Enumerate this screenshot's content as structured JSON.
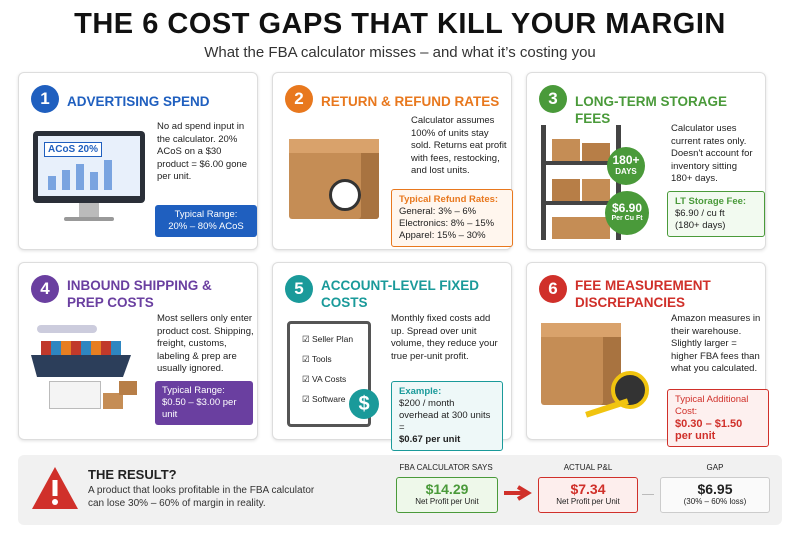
{
  "header": {
    "title": "THE 6 COST GAPS THAT KILL YOUR MARGIN",
    "subtitle": "What the FBA calculator misses – and what it’s costing you"
  },
  "cards": [
    {
      "number": "1",
      "title": "ADVERTISING SPEND",
      "body": "No ad spend input in the calculator. 20% ACoS on a $30 product = $6.00 gone per unit.",
      "illustration": [
        "ACoS 20%"
      ],
      "box": {
        "title": "Typical Range:",
        "lines": [
          "20% – 80% ACoS"
        ]
      }
    },
    {
      "number": "2",
      "title": "RETURN & REFUND RATES",
      "body": "Calculator assumes 100% of units stay sold. Returns eat profit with fees, restocking, and lost units.",
      "box": {
        "title": "Typical Refund Rates:",
        "lines": [
          "General: 3% – 6%",
          "Electronics: 8% – 15%",
          "Apparel: 15% – 30%"
        ]
      }
    },
    {
      "number": "3",
      "title": "LONG-TERM STORAGE FEES",
      "body": "Calculator uses current rates only. Doesn't account for inventory sitting 180+ days.",
      "illustration": [
        "180+",
        "DAYS",
        "$6.90",
        "Per Cu Ft"
      ],
      "box": {
        "title": "LT Storage Fee:",
        "lines": [
          "$6.90 / cu ft",
          "(180+ days)"
        ]
      }
    },
    {
      "number": "4",
      "title": "INBOUND SHIPPING & PREP COSTS",
      "body": "Most sellers only enter product cost. Shipping, freight, customs, labeling & prep are usually ignored.",
      "box": {
        "title": "Typical Range:",
        "lines": [
          "$0.50 – $3.00 per unit"
        ]
      }
    },
    {
      "number": "5",
      "title": "ACCOUNT-LEVEL FIXED COSTS",
      "body": "Monthly fixed costs add up. Spread over unit volume, they reduce your true per-unit profit.",
      "illustration": [
        "Seller Plan",
        "Tools",
        "VA Costs",
        "Software",
        "$"
      ],
      "box": {
        "title": "Example:",
        "lines": [
          "$200 / month overhead at 300 units =",
          "$0.67 per unit"
        ]
      }
    },
    {
      "number": "6",
      "title": "FEE MEASUREMENT DISCREPANCIES",
      "body": "Amazon measures in their warehouse. Slightly larger = higher FBA fees than what you calculated.",
      "box": {
        "title": "Typical Additional Cost:",
        "lines": [
          "$0.30 – $1.50 per unit"
        ]
      }
    }
  ],
  "result": {
    "title": "THE RESULT?",
    "body": "A product that looks profitable in the FBA calculator can lose 30% – 60% of margin in reality.",
    "comparisons": [
      {
        "label": "FBA CALCULATOR SAYS",
        "value": "$14.29",
        "note": "Net Profit per Unit"
      },
      {
        "label": "ACTUAL P&L",
        "value": "$7.34",
        "note": "Net Profit per Unit"
      },
      {
        "label": "GAP",
        "value": "$6.95",
        "note": "(30% – 60% loss)"
      }
    ]
  }
}
